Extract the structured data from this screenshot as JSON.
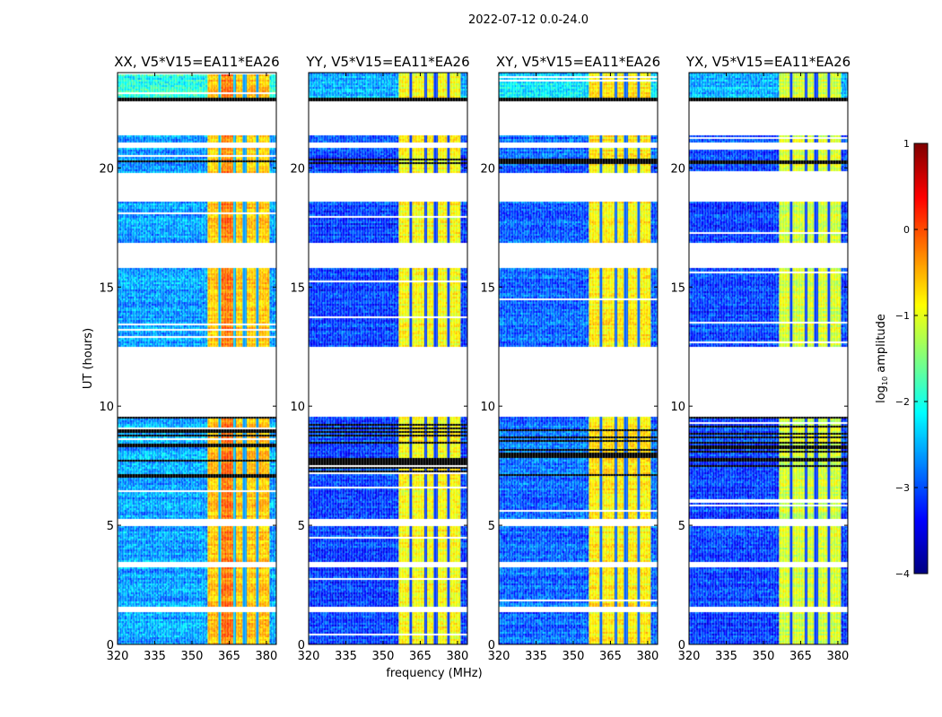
{
  "chart_data": {
    "type": "heatmap",
    "title": "2022-07-12 0.0-24.0",
    "xlabel": "frequency (MHz)",
    "ylabel": "UT (hours)",
    "xlim": [
      320,
      384
    ],
    "ylim": [
      0,
      24
    ],
    "xticks": [
      "320",
      "335",
      "350",
      "365",
      "380"
    ],
    "xtick_values": [
      320,
      335,
      350,
      365,
      380
    ],
    "yticks": [
      "0",
      "5",
      "10",
      "15",
      "20"
    ],
    "ytick_values": [
      0,
      5,
      10,
      15,
      20
    ],
    "colorbar": {
      "label": "log10 amplitude",
      "label_main": "log",
      "label_sub": "10",
      "label_rest": " amplitude",
      "range": [
        -4,
        1
      ],
      "ticks": [
        "1",
        "0",
        "−1",
        "−2",
        "−3",
        "−4"
      ],
      "tick_values": [
        1,
        0,
        -1,
        -2,
        -3,
        -4
      ],
      "colormap": "jet"
    },
    "flagged_time_ranges_hours": [
      [
        21.4,
        22.85
      ],
      [
        20.85,
        21.1
      ],
      [
        18.6,
        19.8
      ],
      [
        15.8,
        16.9
      ],
      [
        9.6,
        12.5
      ],
      [
        5.0,
        5.3
      ],
      [
        3.25,
        3.5
      ],
      [
        1.4,
        1.65
      ]
    ],
    "bright_band_mhz": [
      356,
      381
    ],
    "subband_edges_mhz": [
      361,
      367,
      371,
      376
    ],
    "panels": [
      {
        "title": "XX, V5*V15=EA11*EA26",
        "low_band_level": -2.6,
        "high_band_level": -0.6
      },
      {
        "title": "YY, V5*V15=EA11*EA26",
        "low_band_level": -3.1,
        "high_band_level": -0.9
      },
      {
        "title": "XY, V5*V15=EA11*EA26",
        "low_band_level": -2.9,
        "high_band_level": -0.8
      },
      {
        "title": "YX, V5*V15=EA11*EA26",
        "low_band_level": -3.1,
        "high_band_level": -1.1
      }
    ]
  }
}
